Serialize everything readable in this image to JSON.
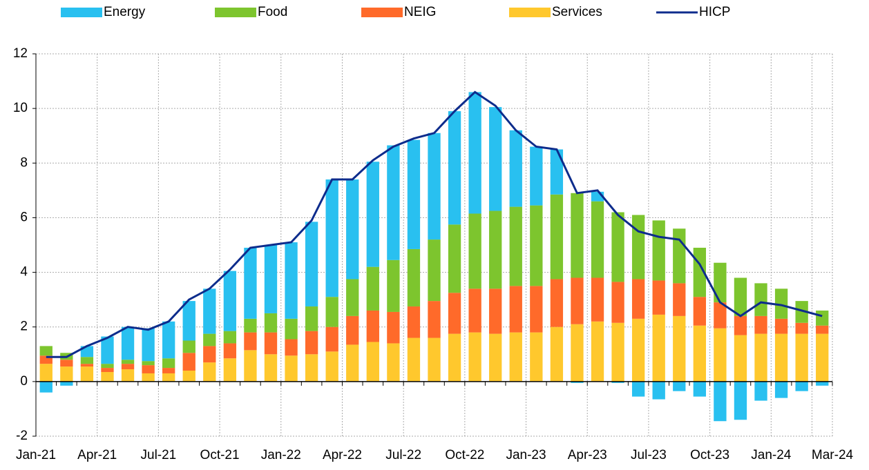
{
  "chart_data": {
    "type": "stacked-bar-line",
    "categories": [
      "Jan-21",
      null,
      null,
      "Apr-21",
      null,
      null,
      "Jul-21",
      null,
      null,
      "Oct-21",
      null,
      null,
      "Jan-22",
      null,
      null,
      "Apr-22",
      null,
      null,
      "Jul-22",
      null,
      null,
      "Oct-22",
      null,
      null,
      "Jan-23",
      null,
      null,
      "Apr-23",
      null,
      null,
      "Jul-23",
      null,
      null,
      "Oct-23",
      null,
      null,
      "Jan-24",
      null,
      "Mar-24"
    ],
    "series": [
      {
        "name": "Energy",
        "kind": "bar",
        "color": "#29c0f0",
        "values": [
          -0.4,
          -0.15,
          0.4,
          1.0,
          1.2,
          1.2,
          1.35,
          1.45,
          1.65,
          2.2,
          2.6,
          2.5,
          2.8,
          3.1,
          4.3,
          3.65,
          3.85,
          4.2,
          4.0,
          3.9,
          4.15,
          4.45,
          3.8,
          2.8,
          2.15,
          1.65,
          -0.05,
          0.35,
          -0.05,
          -0.55,
          -0.65,
          -0.35,
          -0.55,
          -1.45,
          -1.4,
          -0.7,
          -0.6,
          -0.35,
          -0.15
        ]
      },
      {
        "name": "Food",
        "kind": "bar",
        "color": "#7dc52e",
        "values": [
          0.35,
          0.25,
          0.25,
          0.15,
          0.15,
          0.15,
          0.35,
          0.45,
          0.45,
          0.45,
          0.5,
          0.7,
          0.75,
          0.9,
          1.1,
          1.35,
          1.6,
          1.9,
          2.1,
          2.25,
          2.5,
          2.75,
          2.85,
          2.9,
          2.95,
          3.1,
          3.1,
          2.8,
          2.55,
          2.35,
          2.2,
          2.0,
          1.8,
          1.45,
          1.4,
          1.2,
          1.1,
          0.8,
          0.55
        ]
      },
      {
        "name": "NEIG",
        "kind": "bar",
        "color": "#ff6a2a",
        "values": [
          0.3,
          0.25,
          0.1,
          0.15,
          0.2,
          0.3,
          0.2,
          0.65,
          0.6,
          0.55,
          0.65,
          0.8,
          0.6,
          0.85,
          0.9,
          1.05,
          1.15,
          1.15,
          1.15,
          1.35,
          1.5,
          1.6,
          1.65,
          1.7,
          1.7,
          1.75,
          1.7,
          1.6,
          1.5,
          1.45,
          1.25,
          1.2,
          1.05,
          0.95,
          0.7,
          0.65,
          0.55,
          0.4,
          0.3
        ]
      },
      {
        "name": "Services",
        "kind": "bar",
        "color": "#ffc82d",
        "values": [
          0.65,
          0.55,
          0.55,
          0.35,
          0.45,
          0.3,
          0.3,
          0.4,
          0.7,
          0.85,
          1.15,
          1.0,
          0.95,
          1.0,
          1.1,
          1.35,
          1.45,
          1.4,
          1.6,
          1.6,
          1.75,
          1.8,
          1.75,
          1.8,
          1.8,
          2.0,
          2.1,
          2.2,
          2.15,
          2.3,
          2.45,
          2.4,
          2.05,
          1.95,
          1.7,
          1.75,
          1.75,
          1.75,
          1.75
        ]
      },
      {
        "name": "HICP",
        "kind": "line",
        "color": "#0d2c8c",
        "values": [
          0.9,
          0.9,
          1.3,
          1.6,
          2.0,
          1.9,
          2.2,
          3.0,
          3.4,
          4.1,
          4.9,
          5.0,
          5.1,
          5.9,
          7.4,
          7.4,
          8.1,
          8.6,
          8.9,
          9.1,
          9.9,
          10.6,
          10.1,
          9.2,
          8.6,
          8.5,
          6.9,
          7.0,
          6.1,
          5.5,
          5.3,
          5.2,
          4.3,
          2.9,
          2.4,
          2.9,
          2.8,
          2.6,
          2.4
        ]
      }
    ],
    "stack_order": [
      "Services",
      "NEIG",
      "Food",
      "Energy"
    ],
    "ylim": [
      -2,
      12
    ],
    "yticks": [
      -2,
      0,
      2,
      4,
      6,
      8,
      10,
      12
    ],
    "grid": true,
    "legend": "top"
  }
}
